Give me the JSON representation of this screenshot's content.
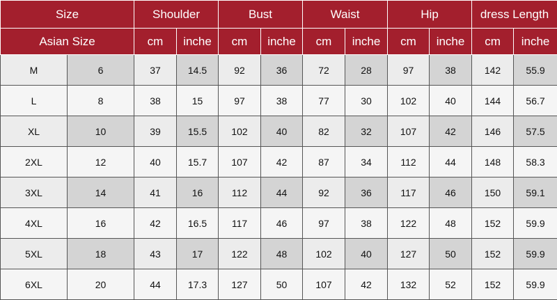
{
  "table": {
    "header_top": [
      "Size",
      "Shoulder",
      "Bust",
      "Waist",
      "Hip",
      "dress Length"
    ],
    "header_sub": [
      "Asian Size",
      "cm",
      "inche",
      "cm",
      "inche",
      "cm",
      "inche",
      "cm",
      "inche",
      "cm",
      "inche"
    ],
    "rows": [
      [
        "M",
        6,
        37,
        14.5,
        92,
        36,
        72,
        28,
        97,
        38,
        142,
        55.9
      ],
      [
        "L",
        8,
        38,
        15,
        97,
        38,
        77,
        30,
        102,
        40,
        144,
        56.7
      ],
      [
        "XL",
        10,
        39,
        15.5,
        102,
        40,
        82,
        32,
        107,
        42,
        146,
        57.5
      ],
      [
        "2XL",
        12,
        40,
        15.7,
        107,
        42,
        87,
        34,
        112,
        44,
        148,
        58.3
      ],
      [
        "3XL",
        14,
        41,
        16,
        112,
        44,
        92,
        36,
        117,
        46,
        150,
        59.1
      ],
      [
        "4XL",
        16,
        42,
        16.5,
        117,
        46,
        97,
        38,
        122,
        48,
        152,
        59.9
      ],
      [
        "5XL",
        18,
        43,
        17,
        122,
        48,
        102,
        40,
        127,
        50,
        152,
        59.9
      ],
      [
        "6XL",
        20,
        44,
        17.3,
        127,
        50,
        107,
        42,
        132,
        52,
        152,
        59.9
      ]
    ]
  }
}
